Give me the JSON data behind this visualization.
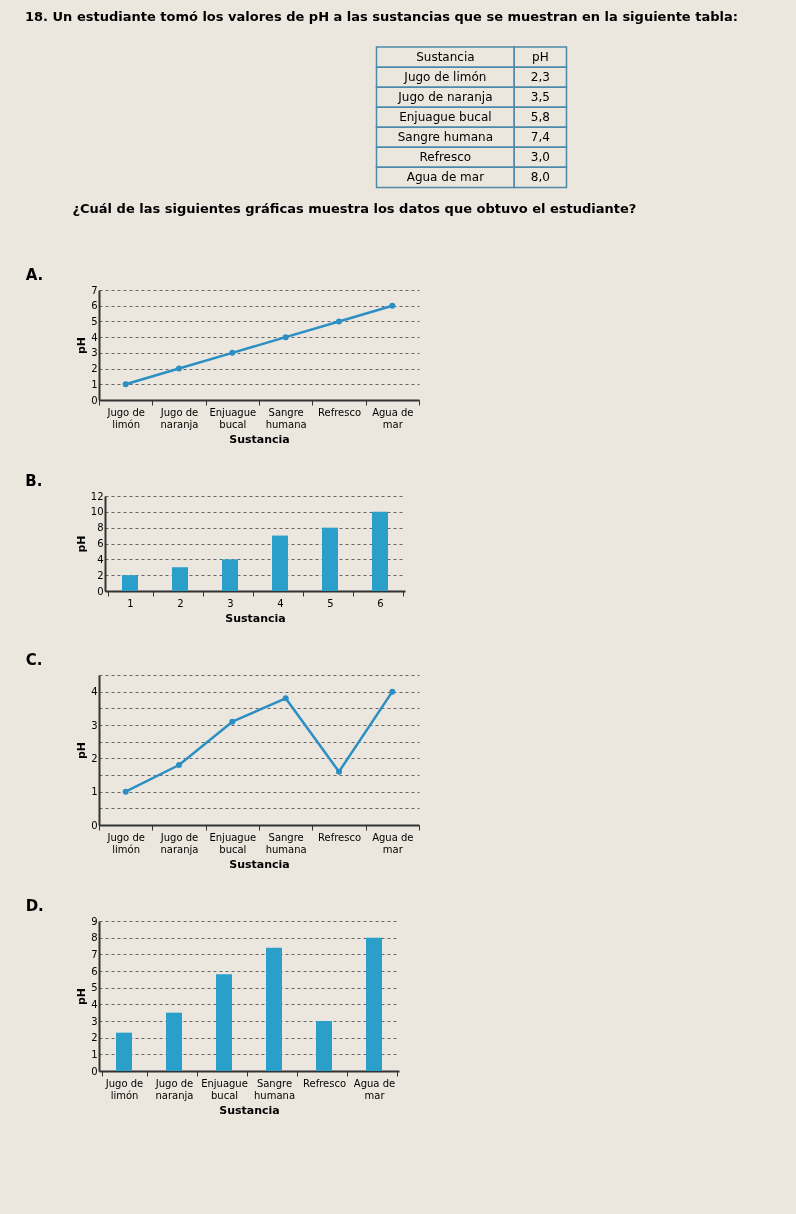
{
  "chart_data": [
    {
      "type": "other",
      "title": "18. Un estudiante tomó los valores de pH a las sustancias que se muestran en la siguiente tabla:",
      "annotations": [
        "Sustancia",
        "pH",
        "Jugo de limón",
        "2,3",
        "Jugo de naranja",
        "3,5",
        "Enjuague bucal",
        "5,8",
        "Sangre humana",
        "7,4",
        "Refresco",
        "3,0",
        "Agua de mar",
        "8,0",
        "¿Cuál de las siguientes gráficas muestra los datos que obtuvo el estudiante?"
      ]
    },
    {
      "type": "line",
      "title": "A.",
      "xlabel": "Sustancia",
      "ylabel": "pH",
      "categories": [
        "Jugo de limón",
        "Jugo de naranja",
        "Enjuague bucal",
        "Sangre humana",
        "Refresco",
        "Agua de mar"
      ],
      "values": [
        1,
        2,
        3,
        4,
        5,
        6
      ],
      "color": "#2b8fc4",
      "marker": "circle",
      "ylim": [
        0,
        7
      ],
      "yticks": [
        0,
        1,
        2,
        3,
        4,
        5,
        6,
        7
      ],
      "grid": "y"
    },
    {
      "type": "bar",
      "title": "B.",
      "xlabel": "Sustancia",
      "ylabel": "pH",
      "categories": [
        "1",
        "2",
        "3",
        "4",
        "5",
        "6"
      ],
      "values": [
        2,
        3,
        4,
        7,
        8,
        10
      ],
      "color": "#2a9fc9",
      "ylim": [
        0,
        12
      ],
      "yticks": [
        0,
        2,
        4,
        6,
        8,
        10,
        12
      ],
      "grid": "y"
    },
    {
      "type": "line",
      "title": "C.",
      "xlabel": "Sustancia",
      "ylabel": "pH",
      "categories": [
        "Jugo de limón",
        "Jugo de naranja",
        "Enjuague bucal",
        "Sangre humana",
        "Refresco",
        "Agua de mar"
      ],
      "values": [
        1.0,
        1.8,
        3.1,
        3.8,
        1.6,
        4.0
      ],
      "color": "#2b8fc4",
      "marker": "circle",
      "ylim": [
        0,
        4.5
      ],
      "yticks": [
        0,
        {
          "value": 0.5,
          "label": null
        },
        1,
        {
          "value": 1.5,
          "label": null
        },
        2,
        {
          "value": 2.5,
          "label": null
        },
        3,
        {
          "value": 3.5,
          "label": null
        },
        4,
        {
          "value": 4.5,
          "label": null
        }
      ],
      "grid": "y"
    },
    {
      "type": "bar",
      "title": "D.",
      "xlabel": "Sustancia",
      "ylabel": "pH",
      "categories": [
        "Jugo de limón",
        "Jugo de naranja",
        "Enjuague bucal",
        "Sangre humana",
        "Refresco",
        "Agua de mar"
      ],
      "values": [
        2.3,
        3.5,
        5.8,
        7.4,
        3.0,
        8.0
      ],
      "color": "#2a9fc9",
      "ylim": [
        0,
        9
      ],
      "yticks": [
        0,
        1,
        2,
        3,
        4,
        5,
        6,
        7,
        8,
        9
      ],
      "grid": "y"
    }
  ]
}
